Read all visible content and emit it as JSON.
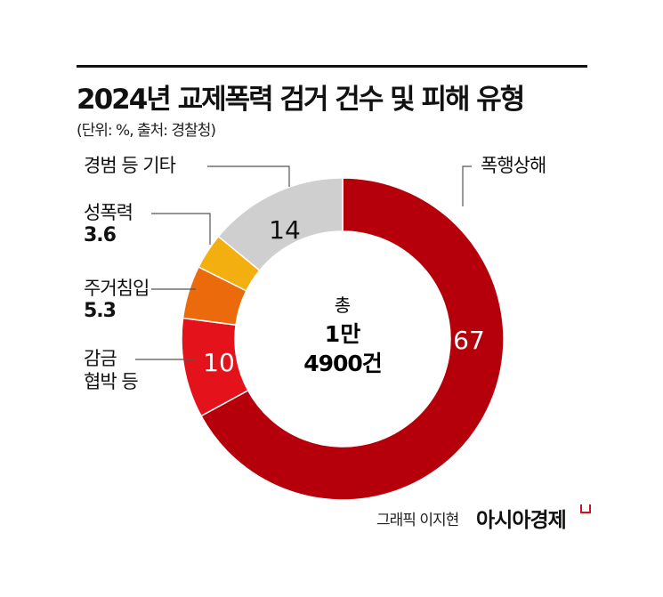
{
  "title": "2024년 교제폭력 검거 건수 및 피해 유형",
  "subtitle": "(단위: %, 출처: 경찰청)",
  "credit": "그래픽 이지현",
  "brand": "아시아경제",
  "chart_data": {
    "type": "pie",
    "donut": true,
    "unit": "%",
    "center_label": [
      "총",
      "1만",
      "4900건"
    ],
    "slices": [
      {
        "name": "폭행상해",
        "value": 67,
        "label": "67",
        "color": "#b5000b"
      },
      {
        "name": "감금 협박 등",
        "value": 10,
        "label": "10",
        "color": "#e3121b"
      },
      {
        "name": "주거침입",
        "value": 5.3,
        "label": "5.3",
        "color": "#eb6a0c"
      },
      {
        "name": "성폭력",
        "value": 3.6,
        "label": "3.6",
        "color": "#f3ae10"
      },
      {
        "name": "경범 등 기타",
        "value": 14,
        "label": "14",
        "color": "#cfcfcf"
      }
    ]
  },
  "labels": {
    "assault": "폭행상해",
    "confine_1": "감금",
    "confine_2": "협박 등",
    "trespass": "주거침입",
    "trespass_val": "5.3",
    "sexual": "성폭력",
    "sexual_val": "3.6",
    "other": "경범 등 기타"
  }
}
